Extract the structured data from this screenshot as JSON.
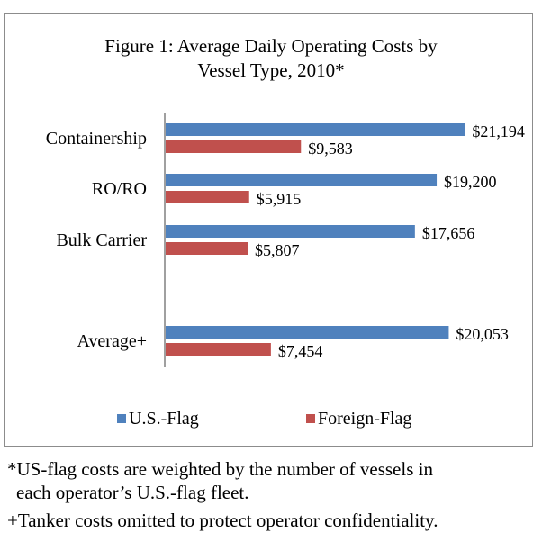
{
  "figure": {
    "title_line1": "Figure 1: Average Daily Operating Costs by",
    "title_line2": "Vessel Type, 2010*"
  },
  "footnotes": {
    "note1_line1": "*US-flag costs are weighted by the number of vessels in",
    "note1_line2": "each operator’s U.S.-flag fleet.",
    "note2": "+Tanker costs omitted to protect operator confidentiality."
  },
  "chart_data": {
    "type": "bar",
    "orientation": "horizontal",
    "title": "Figure 1: Average Daily Operating Costs by Vessel Type, 2010*",
    "categories": [
      "Containership",
      "RO/RO",
      "Bulk Carrier",
      "Average+"
    ],
    "series": [
      {
        "name": "U.S.-Flag",
        "color": "#4F81BD",
        "values": [
          21194,
          19200,
          17656,
          20053
        ],
        "labels": [
          "$21,194",
          "$19,200",
          "$17,656",
          "$20,053"
        ]
      },
      {
        "name": "Foreign-Flag",
        "color": "#C0504D",
        "values": [
          9583,
          5915,
          5807,
          7454
        ],
        "labels": [
          "$9,583",
          "$5,915",
          "$5,807",
          "$7,454"
        ]
      }
    ],
    "xlim": [
      0,
      25000
    ],
    "grid": false,
    "legend_position": "bottom",
    "xlabel": "",
    "ylabel": ""
  }
}
